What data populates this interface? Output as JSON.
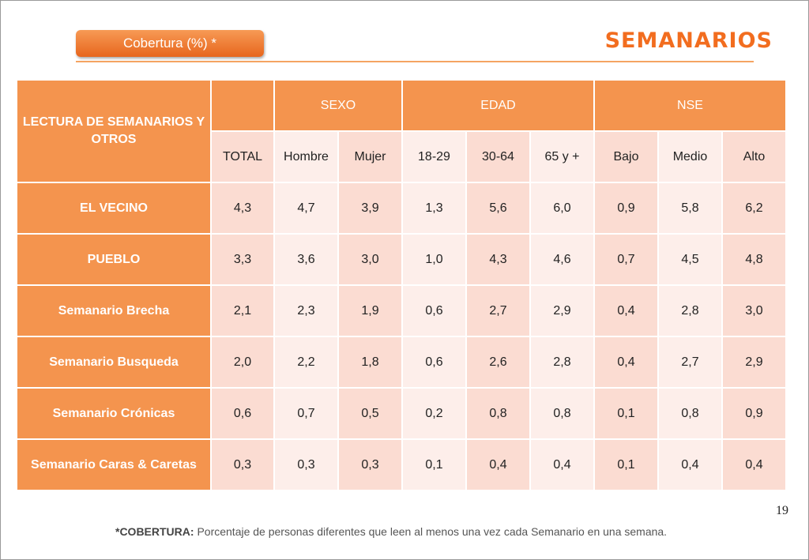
{
  "header": {
    "pill_label": "Cobertura (%) *",
    "title": "SEMANARIOS"
  },
  "table": {
    "corner_label": "LECTURA DE SEMANARIOS Y OTROS",
    "groups": [
      "SEXO",
      "EDAD",
      "NSE"
    ],
    "subheaders": [
      "TOTAL",
      "Hombre",
      "Mujer",
      "18-29",
      "30-64",
      "65 y +",
      "Bajo",
      "Medio",
      "Alto"
    ],
    "rows": [
      {
        "label": "EL VECINO",
        "values": [
          "4,3",
          "4,7",
          "3,9",
          "1,3",
          "5,6",
          "6,0",
          "0,9",
          "5,8",
          "6,2"
        ]
      },
      {
        "label": "PUEBLO",
        "values": [
          "3,3",
          "3,6",
          "3,0",
          "1,0",
          "4,3",
          "4,6",
          "0,7",
          "4,5",
          "4,8"
        ]
      },
      {
        "label": "Semanario Brecha",
        "values": [
          "2,1",
          "2,3",
          "1,9",
          "0,6",
          "2,7",
          "2,9",
          "0,4",
          "2,8",
          "3,0"
        ]
      },
      {
        "label": "Semanario Busqueda",
        "values": [
          "2,0",
          "2,2",
          "1,8",
          "0,6",
          "2,6",
          "2,8",
          "0,4",
          "2,7",
          "2,9"
        ]
      },
      {
        "label": "Semanario Crónicas",
        "values": [
          "0,6",
          "0,7",
          "0,5",
          "0,2",
          "0,8",
          "0,8",
          "0,1",
          "0,8",
          "0,9"
        ]
      },
      {
        "label": "Semanario Caras & Caretas",
        "values": [
          "0,3",
          "0,3",
          "0,3",
          "0,1",
          "0,4",
          "0,4",
          "0,1",
          "0,4",
          "0,4"
        ]
      }
    ]
  },
  "page_number": "19",
  "footnote": {
    "label": "*COBERTURA:",
    "text": " Porcentaje de personas diferentes que leen al menos una vez cada Semanario en una semana."
  },
  "colors": {
    "accent": "#f26d1f",
    "header_fill": "#f4944e",
    "cell_dark": "#fbdcd2",
    "cell_light": "#fdeeea"
  }
}
